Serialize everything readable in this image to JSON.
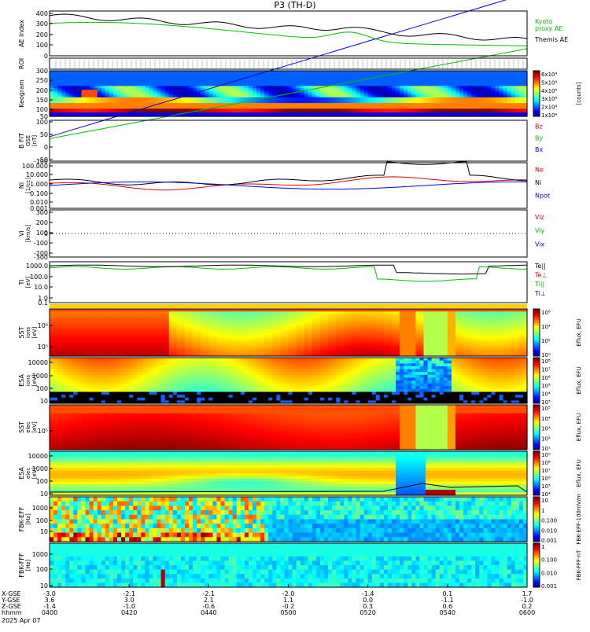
{
  "title": "P3 (TH-D)",
  "date": "2025 Apr 07",
  "chart_data": {
    "type": "line",
    "time_ticks": [
      "0400",
      "0420",
      "0440",
      "0500",
      "0520",
      "0540",
      "0600"
    ],
    "ephemeris": {
      "labels": [
        "X-GSE",
        "Y-GSE",
        "Z-GSE",
        "hhmm"
      ],
      "rows": [
        [
          "-3.0",
          "-2.1",
          "-2.1",
          "-2.0",
          "-1.4",
          "0.1",
          "1.7"
        ],
        [
          "3.6",
          "3.0",
          "2.1",
          "1.1",
          "0.0",
          "-1.1",
          "-1.0"
        ],
        [
          "-1.4",
          "-1.0",
          "-0.6",
          "-0.2",
          "0.3",
          "0.6",
          "0.2"
        ]
      ]
    },
    "panels": [
      {
        "id": "ae",
        "label": "AE Index",
        "units": "",
        "ticks": [
          "400",
          "300",
          "200",
          "100",
          "0"
        ],
        "legend": [
          {
            "name": "Kyoto\nproxy AE",
            "color": "#00c000"
          },
          {
            "name": "Themis AE",
            "color": "#000000"
          }
        ]
      },
      {
        "id": "roi",
        "label": "ROI",
        "units": "",
        "ticks": [],
        "legend": []
      },
      {
        "id": "keogram",
        "label": "Keogram",
        "units": "",
        "ticks": [
          "300",
          "250",
          "200",
          "150",
          "100",
          "50"
        ],
        "colorbar": {
          "labels": [
            "6x10⁴",
            "5x10⁴",
            "4x10⁴",
            "3x10⁴",
            "2x10⁴",
            "1x10⁴"
          ],
          "units": "[counts]"
        }
      },
      {
        "id": "bfit",
        "label": "B FIT",
        "units": "GSE\n[nT]",
        "ticks": [
          "100",
          "50",
          "0",
          "-50",
          "-100"
        ],
        "legend": [
          {
            "name": "Bz",
            "color": "#e00000"
          },
          {
            "name": "By",
            "color": "#00c000"
          },
          {
            "name": "Bx",
            "color": "#0000e0"
          }
        ]
      },
      {
        "id": "ni",
        "label": "Ni",
        "units": "[1/cc]",
        "ticks": [
          "100.000",
          "10.000",
          "1.000",
          "0.100",
          "0.010",
          "0.001"
        ],
        "legend": [
          {
            "name": "Ne",
            "color": "#e00000"
          },
          {
            "name": "Ni",
            "color": "#000000"
          },
          {
            "name": "Npot",
            "color": "#0000e0"
          }
        ]
      },
      {
        "id": "vi",
        "label": "Vi",
        "units": "[km/s]",
        "ticks": [
          "300",
          "200",
          "100",
          "0",
          "-100",
          "-200",
          "-300"
        ],
        "legend": [
          {
            "name": "Viz",
            "color": "#e00000"
          },
          {
            "name": "Viy",
            "color": "#00c000"
          },
          {
            "name": "Vix",
            "color": "#0000e0"
          }
        ]
      },
      {
        "id": "ti",
        "label": "Ti",
        "units": "[eV]",
        "ticks": [
          "1000.0",
          "100.0",
          "10.0",
          "1.0",
          "0.1"
        ],
        "legend": [
          {
            "name": "Te||",
            "color": "#000000"
          },
          {
            "name": "Te⊥",
            "color": "#e00000"
          },
          {
            "name": "Ti||",
            "color": "#00c000"
          },
          {
            "name": "Ti⊥",
            "color": "#0000e0"
          }
        ]
      },
      {
        "id": "sst_i",
        "label": "SST",
        "units": "ions\n[eV]",
        "ticks": [
          "10⁶",
          "10⁵"
        ],
        "colorbar": {
          "labels": [
            "10⁶",
            "10⁴",
            "10²",
            "10⁰"
          ],
          "units": "Eflux, EFU"
        }
      },
      {
        "id": "esa_i",
        "label": "ESA",
        "units": "ions\n[eV]",
        "ticks": [
          "10000",
          "1000",
          "100",
          "10"
        ],
        "colorbar": {
          "labels": [
            "10⁸",
            "10⁷",
            "10⁶",
            "10⁵",
            "10⁴",
            "10³"
          ],
          "units": "Eflux, EFU"
        }
      },
      {
        "id": "sst_e",
        "label": "SST",
        "units": "elec\n[eV]",
        "ticks": [
          "10⁵"
        ],
        "colorbar": {
          "labels": [
            "10⁵",
            "10⁴",
            "10³",
            "10²",
            "10¹"
          ],
          "units": "Eflux, EFU"
        }
      },
      {
        "id": "esa_e",
        "label": "ESA",
        "units": "elec\n[eV]",
        "ticks": [
          "10000",
          "1000",
          "100",
          "10"
        ],
        "colorbar": {
          "labels": [
            "10⁹",
            "10⁸",
            "10⁷",
            "10⁶",
            "10⁵",
            "10⁴"
          ],
          "units": "Eflux, EFU"
        }
      },
      {
        "id": "fbk_e",
        "label": "FBK-EFF",
        "units": "[Hz]",
        "ticks": [
          "1000",
          "100",
          "10"
        ],
        "colorbar": {
          "labels": [
            "10",
            "1",
            "0.100",
            "0.010",
            "0.001"
          ],
          "units": "FBK-EFF-100mV/m"
        }
      },
      {
        "id": "fbk_s",
        "label": "FBK-FFF",
        "units": "[Hz]",
        "ticks": [
          "1000",
          "100",
          "10"
        ],
        "colorbar": {
          "labels": [
            "1",
            "0.100",
            "0.010",
            "0.001"
          ],
          "units": "FBK-FFF-nT"
        }
      }
    ]
  }
}
